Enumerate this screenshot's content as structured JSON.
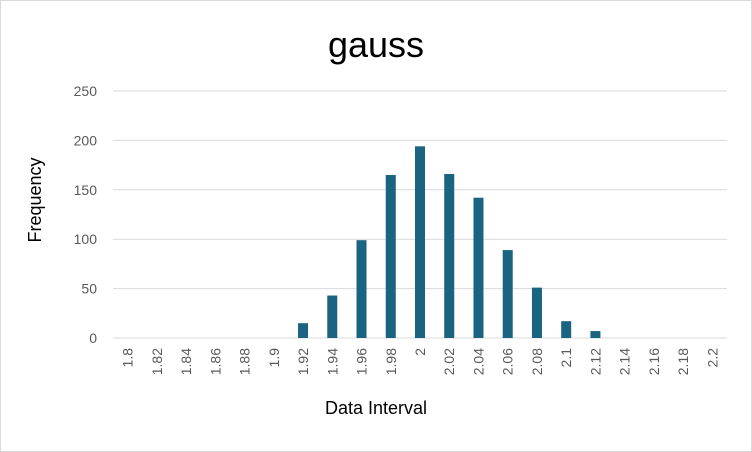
{
  "chart_data": {
    "type": "bar",
    "title": "gauss",
    "xlabel": "Data Interval",
    "ylabel": "Frequency",
    "categories": [
      "1.8",
      "1.82",
      "1.84",
      "1.86",
      "1.88",
      "1.9",
      "1.92",
      "1.94",
      "1.96",
      "1.98",
      "2",
      "2.02",
      "2.04",
      "2.06",
      "2.08",
      "2.1",
      "2.12",
      "2.14",
      "2.16",
      "2.18",
      "2.2"
    ],
    "values": [
      0,
      0,
      0,
      0,
      0,
      0,
      15,
      43,
      99,
      165,
      194,
      166,
      142,
      89,
      51,
      17,
      7,
      0,
      0,
      0,
      0
    ],
    "ylim": [
      0,
      250
    ],
    "yticks": [
      0,
      50,
      100,
      150,
      200,
      250
    ],
    "grid": true,
    "legend": "none",
    "colors": {
      "bar": "#1a6381",
      "grid": "#d9d9d9",
      "tick_text": "#595959"
    }
  }
}
